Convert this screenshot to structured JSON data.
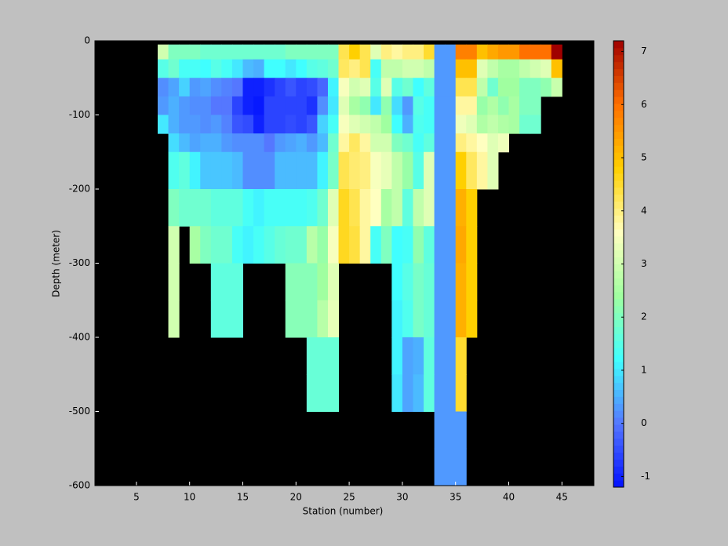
{
  "chart_data": {
    "type": "heatmap",
    "xlabel": "Station (number)",
    "ylabel": "Depth (meter)",
    "xlim": [
      1.1,
      48
    ],
    "ylim": [
      -600,
      0
    ],
    "xticks": [
      5,
      10,
      15,
      20,
      25,
      30,
      35,
      40,
      45
    ],
    "yticks": [
      0,
      -100,
      -200,
      -300,
      -400,
      -500,
      -600
    ],
    "background": "#000000",
    "clim": [
      -1.2,
      7.2
    ],
    "cticks": [
      -1,
      0,
      1,
      2,
      3,
      4,
      5,
      6,
      7
    ],
    "colormap": [
      "#0010ff",
      "#5577ff",
      "#40ffff",
      "#a0ffa0",
      "#ffffc0",
      "#ffd000",
      "#ff7000",
      "#a00000"
    ],
    "x": [
      7,
      8,
      9,
      10,
      11,
      12,
      13,
      14,
      15,
      16,
      17,
      18,
      19,
      20,
      21,
      22,
      23,
      24,
      25,
      26,
      27,
      28,
      29,
      30,
      31,
      32,
      33,
      34,
      35,
      36,
      37,
      38,
      39,
      40,
      41,
      42,
      43,
      44,
      45
    ],
    "y": [
      -5,
      -25,
      -50,
      -75,
      -100,
      -125,
      -150,
      -200,
      -250,
      -300,
      -350,
      -400,
      -450,
      -500,
      -550,
      -600
    ],
    "values": [
      [
        3,
        2,
        2,
        2,
        1.8,
        1.8,
        1.8,
        1.8,
        1.8,
        1.8,
        1.8,
        1.8,
        2,
        2,
        2,
        2,
        2,
        4.3,
        4.8,
        4.3,
        3.2,
        4,
        3.8,
        4,
        4,
        4.5,
        0.3,
        0.3,
        5.8,
        5.8,
        5,
        5.3,
        5.5,
        5.5,
        6,
        6,
        6,
        7.2
      ],
      [
        1.5,
        1.8,
        1.3,
        1.3,
        1.2,
        1.5,
        1.3,
        1,
        0.6,
        0.5,
        1.2,
        1.2,
        1,
        1.2,
        1.5,
        1.6,
        1.8,
        4.2,
        4,
        4.3,
        1.3,
        2.8,
        2.8,
        3,
        3,
        2.8,
        0.3,
        0.3,
        5,
        5,
        3.2,
        2.8,
        2.5,
        2.5,
        2.8,
        3,
        3.2,
        5
      ],
      [
        0.2,
        0.4,
        0.8,
        0.3,
        0.4,
        0.2,
        0.1,
        0,
        -1,
        -1,
        -0.8,
        -0.6,
        -0.4,
        -0.6,
        -0.5,
        -0.2,
        1.1,
        3.5,
        3,
        3.2,
        1.5,
        3.2,
        1.5,
        1.8,
        1.2,
        1.6,
        0.3,
        0.3,
        4.3,
        4.3,
        2.8,
        1.8,
        2.4,
        2.4,
        2,
        2,
        2.2,
        2.9
      ],
      [
        0.3,
        0.5,
        0.3,
        0.2,
        0.2,
        0,
        0,
        -0.6,
        -1,
        -1.1,
        -0.6,
        -0.6,
        -0.6,
        -0.6,
        -0.8,
        0.2,
        1,
        3.2,
        2.5,
        2.2,
        1,
        2.2,
        0.9,
        0.3,
        1.5,
        1.3,
        0.3,
        0.3,
        3.8,
        3.8,
        2.3,
        2.6,
        2.2,
        2.5,
        2,
        2,
        null,
        null
      ],
      [
        1,
        0.5,
        0.3,
        0.3,
        0.2,
        0.3,
        0.1,
        -0.4,
        -0.5,
        -1,
        -0.6,
        -0.6,
        -0.5,
        -0.6,
        -0.4,
        0.8,
        1.3,
        3.5,
        3.2,
        3,
        2.8,
        2.4,
        1.2,
        0.5,
        1.4,
        1.3,
        0.3,
        0.3,
        3.4,
        3.2,
        2.6,
        2.8,
        2.6,
        2.5,
        1.8,
        1.8,
        null,
        null
      ],
      [
        null,
        0.9,
        0.6,
        0.4,
        0.5,
        0.5,
        0.3,
        0.2,
        0.2,
        0.2,
        0,
        0.3,
        0.4,
        0.5,
        0.3,
        0.6,
        1.8,
        3.8,
        4.2,
        3.8,
        3,
        3,
        2,
        1.8,
        1.3,
        1.6,
        0.3,
        0.3,
        4,
        3.8,
        3.6,
        3.2,
        3.4,
        null,
        null,
        null,
        null,
        null
      ],
      [
        null,
        1.4,
        1.6,
        1.1,
        0.7,
        0.7,
        0.7,
        0.6,
        0.2,
        0.2,
        0.2,
        0.6,
        0.6,
        0.6,
        0.6,
        1.1,
        1.9,
        4.3,
        4.1,
        4,
        3.5,
        3.3,
        2.8,
        2.3,
        1.5,
        3.2,
        0.3,
        0.3,
        4.8,
        4.2,
        3.8,
        3.2,
        null,
        null,
        null,
        null,
        null,
        null
      ],
      [
        null,
        2,
        1.8,
        1.8,
        1.8,
        1.6,
        1.6,
        1.6,
        1.3,
        1.1,
        1.3,
        1.3,
        1.3,
        1.3,
        1.4,
        1.8,
        3.2,
        4.6,
        4.3,
        3.8,
        3.6,
        2.5,
        2.8,
        1.6,
        2.8,
        3.2,
        0.3,
        0.3,
        5.2,
        4.8,
        null,
        null,
        null,
        null,
        null,
        null,
        null,
        null
      ],
      [
        null,
        3,
        null,
        2.5,
        2,
        1.8,
        1.8,
        1.3,
        1.1,
        1.3,
        1.5,
        1.7,
        1.8,
        1.8,
        2.7,
        2.3,
        3.5,
        4.6,
        4.4,
        3.8,
        1.3,
        2,
        1.2,
        1.3,
        2.2,
        1.6,
        0.3,
        0.3,
        5.3,
        4.8,
        null,
        null,
        null,
        null,
        null,
        null,
        null,
        null
      ],
      [
        null,
        3,
        null,
        null,
        null,
        1.6,
        1.6,
        1.6,
        null,
        null,
        null,
        null,
        2.1,
        2.1,
        2.1,
        2.4,
        3.2,
        null,
        null,
        null,
        null,
        null,
        1.2,
        1.5,
        1.9,
        1.7,
        0.3,
        0.3,
        5.2,
        4.8,
        null,
        null,
        null,
        null,
        null,
        null,
        null,
        null
      ],
      [
        null,
        3,
        null,
        null,
        null,
        1.6,
        1.6,
        1.6,
        null,
        null,
        null,
        null,
        2.1,
        2.1,
        2.1,
        2.7,
        3.3,
        null,
        null,
        null,
        null,
        null,
        1.1,
        1.4,
        1.9,
        1.7,
        0.3,
        0.3,
        5.2,
        4.8,
        null,
        null,
        null,
        null,
        null,
        null,
        null,
        null
      ],
      [
        null,
        null,
        null,
        null,
        null,
        null,
        null,
        null,
        null,
        null,
        null,
        null,
        null,
        null,
        1.7,
        1.7,
        1.7,
        null,
        null,
        null,
        null,
        null,
        1.1,
        0.4,
        0.5,
        1.6,
        0.3,
        0.3,
        4.5,
        null,
        null,
        null,
        null,
        null,
        null,
        null,
        null,
        null
      ],
      [
        null,
        null,
        null,
        null,
        null,
        null,
        null,
        null,
        null,
        null,
        null,
        null,
        null,
        null,
        1.7,
        1.7,
        1.7,
        null,
        null,
        null,
        null,
        null,
        1,
        0.4,
        0.6,
        1.6,
        0.3,
        0.3,
        4.5,
        null,
        null,
        null,
        null,
        null,
        null,
        null,
        null,
        null
      ],
      [
        null,
        null,
        null,
        null,
        null,
        null,
        null,
        null,
        null,
        null,
        null,
        null,
        null,
        null,
        null,
        null,
        null,
        null,
        null,
        null,
        null,
        null,
        null,
        null,
        null,
        null,
        0.3,
        0.3,
        0.3,
        null,
        null,
        null,
        null,
        null,
        null,
        null,
        null,
        null
      ],
      [
        null,
        null,
        null,
        null,
        null,
        null,
        null,
        null,
        null,
        null,
        null,
        null,
        null,
        null,
        null,
        null,
        null,
        null,
        null,
        null,
        null,
        null,
        null,
        null,
        null,
        null,
        0.3,
        0.3,
        0.3,
        null,
        null,
        null,
        null,
        null,
        null,
        null,
        null,
        null
      ]
    ]
  }
}
